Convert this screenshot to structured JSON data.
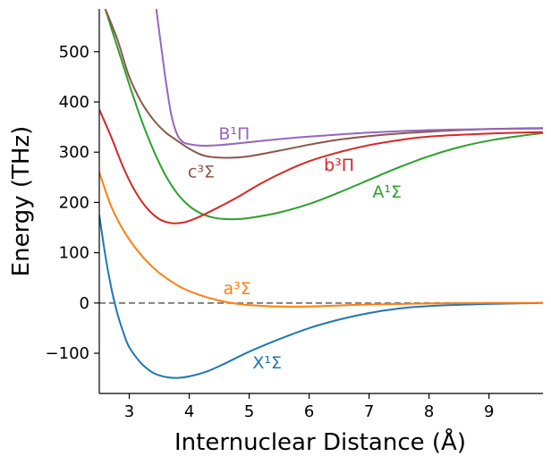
{
  "chart_data": {
    "type": "line",
    "title": "",
    "xlabel": "Internuclear Distance (Å)",
    "ylabel": "Energy (THz)",
    "xlim": [
      2.5,
      9.9
    ],
    "ylim": [
      -180,
      585
    ],
    "xticks": [
      3,
      4,
      5,
      6,
      7,
      8,
      9
    ],
    "yticks": [
      -100,
      0,
      100,
      200,
      300,
      400,
      500
    ],
    "ytick_labels": [
      "−100",
      "0",
      "100",
      "200",
      "300",
      "400",
      "500"
    ],
    "reference_line": {
      "y": 0,
      "style": "dashed",
      "color": "#808080"
    },
    "series": [
      {
        "name": "X¹Σ",
        "label": "X¹Σ",
        "color": "#1f77b4",
        "label_at": [
          5.3,
          -118
        ],
        "points": [
          [
            2.5,
            175
          ],
          [
            2.6,
            95
          ],
          [
            2.7,
            30
          ],
          [
            2.8,
            -20
          ],
          [
            2.9,
            -58
          ],
          [
            3.0,
            -88
          ],
          [
            3.2,
            -120
          ],
          [
            3.4,
            -139
          ],
          [
            3.6,
            -147
          ],
          [
            3.8,
            -149
          ],
          [
            4.0,
            -146
          ],
          [
            4.3,
            -136
          ],
          [
            4.6,
            -120
          ],
          [
            5.0,
            -97
          ],
          [
            5.5,
            -72
          ],
          [
            6.0,
            -50
          ],
          [
            6.5,
            -33
          ],
          [
            7.0,
            -20
          ],
          [
            7.5,
            -11
          ],
          [
            8.0,
            -6
          ],
          [
            9.0,
            -2
          ],
          [
            9.9,
            0
          ]
        ]
      },
      {
        "name": "a³Σ",
        "label": "a³Σ",
        "color": "#ff7f0e",
        "label_at": [
          4.8,
          30
        ],
        "points": [
          [
            2.5,
            260
          ],
          [
            2.7,
            192
          ],
          [
            2.9,
            145
          ],
          [
            3.1,
            110
          ],
          [
            3.3,
            82
          ],
          [
            3.5,
            60
          ],
          [
            3.7,
            43
          ],
          [
            3.9,
            29
          ],
          [
            4.1,
            19
          ],
          [
            4.3,
            11
          ],
          [
            4.5,
            5
          ],
          [
            4.7,
            0
          ],
          [
            5.0,
            -4
          ],
          [
            5.5,
            -7
          ],
          [
            6.0,
            -7
          ],
          [
            6.5,
            -5
          ],
          [
            7.0,
            -3
          ],
          [
            8.0,
            -1
          ],
          [
            9.0,
            0
          ],
          [
            9.9,
            0
          ]
        ]
      },
      {
        "name": "A¹Σ",
        "label": "A¹Σ",
        "color": "#2ca02c",
        "label_at": [
          7.3,
          222
        ],
        "points": [
          [
            2.6,
            585
          ],
          [
            2.8,
            510
          ],
          [
            3.0,
            435
          ],
          [
            3.2,
            365
          ],
          [
            3.4,
            305
          ],
          [
            3.6,
            255
          ],
          [
            3.8,
            218
          ],
          [
            4.0,
            193
          ],
          [
            4.2,
            178
          ],
          [
            4.4,
            170
          ],
          [
            4.6,
            167
          ],
          [
            4.8,
            167
          ],
          [
            5.0,
            169
          ],
          [
            5.5,
            180
          ],
          [
            6.0,
            197
          ],
          [
            6.5,
            220
          ],
          [
            7.0,
            245
          ],
          [
            7.5,
            270
          ],
          [
            8.0,
            292
          ],
          [
            8.5,
            310
          ],
          [
            9.0,
            323
          ],
          [
            9.5,
            332
          ],
          [
            9.9,
            338
          ]
        ]
      },
      {
        "name": "b³Π",
        "label": "b³Π",
        "color": "#d62728",
        "label_at": [
          6.5,
          275
        ],
        "points": [
          [
            2.5,
            385
          ],
          [
            2.7,
            330
          ],
          [
            2.9,
            270
          ],
          [
            3.1,
            222
          ],
          [
            3.3,
            188
          ],
          [
            3.5,
            167
          ],
          [
            3.7,
            159
          ],
          [
            3.9,
            160
          ],
          [
            4.1,
            168
          ],
          [
            4.4,
            185
          ],
          [
            4.8,
            210
          ],
          [
            5.2,
            238
          ],
          [
            5.6,
            262
          ],
          [
            6.0,
            282
          ],
          [
            6.5,
            300
          ],
          [
            7.0,
            314
          ],
          [
            7.5,
            324
          ],
          [
            8.0,
            331
          ],
          [
            9.0,
            337
          ],
          [
            9.9,
            340
          ]
        ]
      },
      {
        "name": "c³Σ",
        "label": "c³Σ",
        "color": "#8c564b",
        "label_at": [
          4.2,
          262
        ],
        "points": [
          [
            2.6,
            585
          ],
          [
            2.8,
            525
          ],
          [
            3.0,
            450
          ],
          [
            3.2,
            400
          ],
          [
            3.4,
            365
          ],
          [
            3.6,
            340
          ],
          [
            3.8,
            323
          ],
          [
            4.0,
            307
          ],
          [
            4.2,
            295
          ],
          [
            4.4,
            290
          ],
          [
            4.7,
            289
          ],
          [
            5.0,
            292
          ],
          [
            5.5,
            303
          ],
          [
            6.0,
            315
          ],
          [
            6.5,
            325
          ],
          [
            7.0,
            332
          ],
          [
            7.5,
            337
          ],
          [
            8.0,
            341
          ],
          [
            9.0,
            346
          ],
          [
            9.9,
            348
          ]
        ]
      },
      {
        "name": "B¹Π",
        "label": "B¹Π",
        "color": "#9467bd",
        "label_at": [
          4.75,
          338
        ],
        "points": [
          [
            3.45,
            585
          ],
          [
            3.5,
            540
          ],
          [
            3.6,
            450
          ],
          [
            3.7,
            375
          ],
          [
            3.8,
            335
          ],
          [
            3.9,
            320
          ],
          [
            4.0,
            316
          ],
          [
            4.2,
            313
          ],
          [
            4.5,
            314
          ],
          [
            5.0,
            320
          ],
          [
            5.5,
            326
          ],
          [
            6.0,
            331
          ],
          [
            7.0,
            339
          ],
          [
            8.0,
            344
          ],
          [
            9.0,
            346
          ],
          [
            9.9,
            347
          ]
        ]
      }
    ]
  }
}
